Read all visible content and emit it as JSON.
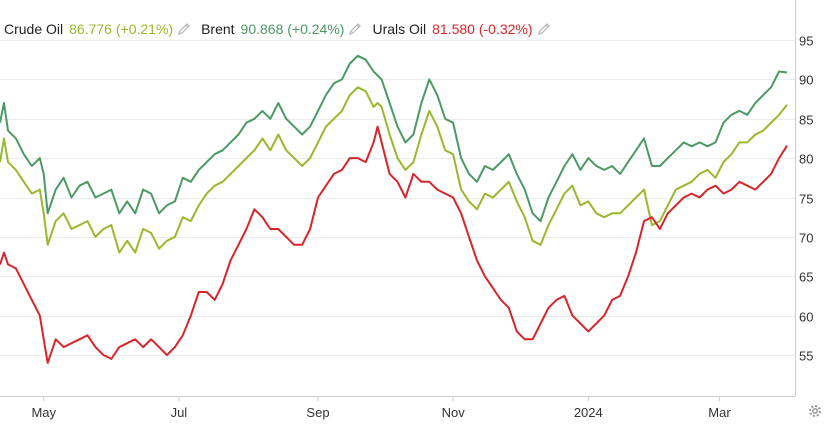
{
  "legend": [
    {
      "name": "Crude Oil",
      "value": "86.776",
      "change": "(+0.21%)",
      "color": "#9ab82d"
    },
    {
      "name": "Brent",
      "value": "90.868",
      "change": "(+0.24%)",
      "color": "#4c9966"
    },
    {
      "name": "Urals Oil",
      "value": "81.580",
      "change": "(-0.32%)",
      "color": "#d7262b"
    }
  ],
  "chart_data": {
    "type": "line",
    "title": "",
    "xlabel": "",
    "ylabel": "",
    "x_range": [
      0,
      100
    ],
    "ylim": [
      50,
      100
    ],
    "y_ticks": [
      55,
      60,
      65,
      70,
      75,
      80,
      85,
      90,
      95
    ],
    "x_ticks": [
      {
        "label": "May",
        "x": 5.5
      },
      {
        "label": "Jul",
        "x": 22.5
      },
      {
        "label": "Sep",
        "x": 40.0
      },
      {
        "label": "Nov",
        "x": 57.0
      },
      {
        "label": "2024",
        "x": 74.0
      },
      {
        "label": "Mar",
        "x": 90.5
      }
    ],
    "grid": true,
    "series": [
      {
        "name": "Brent",
        "color": "#4c9966",
        "points": [
          [
            0,
            84.5
          ],
          [
            0.5,
            87
          ],
          [
            1,
            83.5
          ],
          [
            2,
            82.5
          ],
          [
            3,
            80.5
          ],
          [
            4,
            79
          ],
          [
            5,
            80
          ],
          [
            5.5,
            78
          ],
          [
            6,
            73
          ],
          [
            7,
            76
          ],
          [
            8,
            77.5
          ],
          [
            9,
            75
          ],
          [
            10,
            76.5
          ],
          [
            11,
            77
          ],
          [
            12,
            75
          ],
          [
            13,
            75.5
          ],
          [
            14,
            76
          ],
          [
            15,
            73
          ],
          [
            16,
            74.5
          ],
          [
            17,
            73
          ],
          [
            18,
            76
          ],
          [
            19,
            75.5
          ],
          [
            20,
            73
          ],
          [
            21,
            74
          ],
          [
            22,
            74.5
          ],
          [
            23,
            77.5
          ],
          [
            24,
            77
          ],
          [
            25,
            78.5
          ],
          [
            26,
            79.5
          ],
          [
            27,
            80.5
          ],
          [
            28,
            81
          ],
          [
            29,
            82
          ],
          [
            30,
            83
          ],
          [
            31,
            84.5
          ],
          [
            32,
            85
          ],
          [
            33,
            86
          ],
          [
            34,
            85
          ],
          [
            35,
            87
          ],
          [
            36,
            85
          ],
          [
            37,
            84
          ],
          [
            38,
            83
          ],
          [
            39,
            84
          ],
          [
            40,
            86
          ],
          [
            41,
            88
          ],
          [
            42,
            89.5
          ],
          [
            43,
            90
          ],
          [
            44,
            92
          ],
          [
            45,
            93
          ],
          [
            46,
            92.5
          ],
          [
            47,
            91
          ],
          [
            47.5,
            90.5
          ],
          [
            48,
            90
          ],
          [
            49,
            87
          ],
          [
            50,
            84
          ],
          [
            51,
            82
          ],
          [
            52,
            83
          ],
          [
            53,
            87
          ],
          [
            54,
            90
          ],
          [
            55,
            88
          ],
          [
            56,
            85
          ],
          [
            57,
            84.5
          ],
          [
            58,
            80
          ],
          [
            59,
            78
          ],
          [
            60,
            77
          ],
          [
            61,
            79
          ],
          [
            62,
            78.5
          ],
          [
            63,
            79.5
          ],
          [
            64,
            80.5
          ],
          [
            65,
            78
          ],
          [
            66,
            76
          ],
          [
            67,
            73
          ],
          [
            68,
            72
          ],
          [
            69,
            75
          ],
          [
            70,
            77
          ],
          [
            71,
            79
          ],
          [
            72,
            80.5
          ],
          [
            73,
            78.5
          ],
          [
            74,
            80
          ],
          [
            75,
            79
          ],
          [
            76,
            78.5
          ],
          [
            77,
            79
          ],
          [
            78,
            78
          ],
          [
            79,
            79.5
          ],
          [
            80,
            81
          ],
          [
            81,
            82.5
          ],
          [
            82,
            79
          ],
          [
            83,
            79
          ],
          [
            84,
            80
          ],
          [
            85,
            81
          ],
          [
            86,
            82
          ],
          [
            87,
            81.5
          ],
          [
            88,
            82
          ],
          [
            89,
            81.5
          ],
          [
            90,
            82
          ],
          [
            91,
            84.5
          ],
          [
            92,
            85.5
          ],
          [
            93,
            86
          ],
          [
            94,
            85.5
          ],
          [
            95,
            87
          ],
          [
            96,
            88
          ],
          [
            97,
            89
          ],
          [
            98,
            91
          ],
          [
            99,
            90.868
          ]
        ]
      },
      {
        "name": "Crude Oil",
        "color": "#9ab82d",
        "points": [
          [
            0,
            79.5
          ],
          [
            0.5,
            82.5
          ],
          [
            1,
            79.5
          ],
          [
            2,
            78.5
          ],
          [
            3,
            77
          ],
          [
            4,
            75.5
          ],
          [
            5,
            76
          ],
          [
            5.5,
            73
          ],
          [
            6,
            69
          ],
          [
            7,
            72
          ],
          [
            8,
            73
          ],
          [
            9,
            71
          ],
          [
            10,
            71.5
          ],
          [
            11,
            72
          ],
          [
            12,
            70
          ],
          [
            13,
            71
          ],
          [
            14,
            71.5
          ],
          [
            15,
            68
          ],
          [
            16,
            69.5
          ],
          [
            17,
            68
          ],
          [
            18,
            71
          ],
          [
            19,
            70.5
          ],
          [
            20,
            68.5
          ],
          [
            21,
            69.5
          ],
          [
            22,
            70
          ],
          [
            23,
            72.5
          ],
          [
            24,
            72
          ],
          [
            25,
            74
          ],
          [
            26,
            75.5
          ],
          [
            27,
            76.5
          ],
          [
            28,
            77
          ],
          [
            29,
            78
          ],
          [
            30,
            79
          ],
          [
            31,
            80
          ],
          [
            32,
            81
          ],
          [
            33,
            82.5
          ],
          [
            34,
            81
          ],
          [
            35,
            83
          ],
          [
            36,
            81
          ],
          [
            37,
            80
          ],
          [
            38,
            79
          ],
          [
            39,
            80
          ],
          [
            40,
            82
          ],
          [
            41,
            84
          ],
          [
            42,
            85
          ],
          [
            43,
            86
          ],
          [
            44,
            88
          ],
          [
            45,
            89
          ],
          [
            46,
            88.5
          ],
          [
            47,
            86.5
          ],
          [
            47.5,
            87
          ],
          [
            48,
            86.5
          ],
          [
            49,
            83
          ],
          [
            50,
            80
          ],
          [
            51,
            78.5
          ],
          [
            52,
            79.5
          ],
          [
            53,
            83
          ],
          [
            54,
            86
          ],
          [
            55,
            84
          ],
          [
            56,
            81
          ],
          [
            57,
            80.5
          ],
          [
            58,
            76
          ],
          [
            59,
            74.5
          ],
          [
            60,
            73.5
          ],
          [
            61,
            75.5
          ],
          [
            62,
            75
          ],
          [
            63,
            76
          ],
          [
            64,
            77
          ],
          [
            65,
            74.5
          ],
          [
            66,
            72.5
          ],
          [
            67,
            69.5
          ],
          [
            68,
            69
          ],
          [
            69,
            71.5
          ],
          [
            70,
            73.5
          ],
          [
            71,
            75.5
          ],
          [
            72,
            76.5
          ],
          [
            73,
            74
          ],
          [
            74,
            74.5
          ],
          [
            75,
            73
          ],
          [
            76,
            72.5
          ],
          [
            77,
            73
          ],
          [
            78,
            73
          ],
          [
            79,
            74
          ],
          [
            80,
            75
          ],
          [
            81,
            76
          ],
          [
            82,
            71.5
          ],
          [
            83,
            72
          ],
          [
            84,
            74
          ],
          [
            85,
            76
          ],
          [
            86,
            76.5
          ],
          [
            87,
            77
          ],
          [
            88,
            78
          ],
          [
            89,
            78.5
          ],
          [
            90,
            77.5
          ],
          [
            91,
            79.5
          ],
          [
            92,
            80.5
          ],
          [
            93,
            82
          ],
          [
            94,
            82
          ],
          [
            95,
            83
          ],
          [
            96,
            83.5
          ],
          [
            97,
            84.5
          ],
          [
            98,
            85.5
          ],
          [
            99,
            86.776
          ]
        ]
      },
      {
        "name": "Urals Oil",
        "color": "#d7262b",
        "points": [
          [
            0,
            66.5
          ],
          [
            0.5,
            68
          ],
          [
            1,
            66.5
          ],
          [
            2,
            66
          ],
          [
            3,
            64
          ],
          [
            4,
            62
          ],
          [
            5,
            60
          ],
          [
            5.5,
            57
          ],
          [
            6,
            54
          ],
          [
            7,
            57
          ],
          [
            8,
            56
          ],
          [
            9,
            56.5
          ],
          [
            10,
            57
          ],
          [
            11,
            57.5
          ],
          [
            12,
            56
          ],
          [
            13,
            55
          ],
          [
            14,
            54.5
          ],
          [
            15,
            56
          ],
          [
            16,
            56.5
          ],
          [
            17,
            57
          ],
          [
            18,
            56
          ],
          [
            19,
            57
          ],
          [
            20,
            56
          ],
          [
            21,
            55
          ],
          [
            22,
            56
          ],
          [
            23,
            57.5
          ],
          [
            24,
            60
          ],
          [
            25,
            63
          ],
          [
            26,
            63
          ],
          [
            27,
            62
          ],
          [
            28,
            64
          ],
          [
            29,
            67
          ],
          [
            30,
            69
          ],
          [
            31,
            71
          ],
          [
            32,
            73.5
          ],
          [
            33,
            72.5
          ],
          [
            34,
            71
          ],
          [
            35,
            71
          ],
          [
            36,
            70
          ],
          [
            37,
            69
          ],
          [
            38,
            69
          ],
          [
            39,
            71
          ],
          [
            40,
            75
          ],
          [
            41,
            76.5
          ],
          [
            42,
            78
          ],
          [
            43,
            78.5
          ],
          [
            44,
            80
          ],
          [
            45,
            80
          ],
          [
            46,
            79.5
          ],
          [
            47,
            82
          ],
          [
            47.5,
            84
          ],
          [
            48,
            82
          ],
          [
            49,
            78
          ],
          [
            50,
            77
          ],
          [
            51,
            75
          ],
          [
            52,
            78
          ],
          [
            53,
            77
          ],
          [
            54,
            77
          ],
          [
            55,
            76
          ],
          [
            56,
            75.5
          ],
          [
            57,
            75
          ],
          [
            58,
            73
          ],
          [
            59,
            70
          ],
          [
            60,
            67
          ],
          [
            61,
            65
          ],
          [
            62,
            63.5
          ],
          [
            63,
            62
          ],
          [
            64,
            61
          ],
          [
            65,
            58
          ],
          [
            66,
            57
          ],
          [
            67,
            57
          ],
          [
            68,
            59
          ],
          [
            69,
            61
          ],
          [
            70,
            62
          ],
          [
            71,
            62.5
          ],
          [
            72,
            60
          ],
          [
            73,
            59
          ],
          [
            74,
            58
          ],
          [
            75,
            59
          ],
          [
            76,
            60
          ],
          [
            77,
            62
          ],
          [
            78,
            62.5
          ],
          [
            79,
            65
          ],
          [
            80,
            68
          ],
          [
            81,
            72
          ],
          [
            82,
            72.5
          ],
          [
            83,
            71
          ],
          [
            84,
            73
          ],
          [
            85,
            74
          ],
          [
            86,
            75
          ],
          [
            87,
            75.5
          ],
          [
            88,
            75
          ],
          [
            89,
            76
          ],
          [
            90,
            76.5
          ],
          [
            91,
            75.5
          ],
          [
            92,
            76
          ],
          [
            93,
            77
          ],
          [
            94,
            76.5
          ],
          [
            95,
            76
          ],
          [
            96,
            77
          ],
          [
            97,
            78
          ],
          [
            98,
            80
          ],
          [
            99,
            81.58
          ]
        ]
      }
    ]
  }
}
